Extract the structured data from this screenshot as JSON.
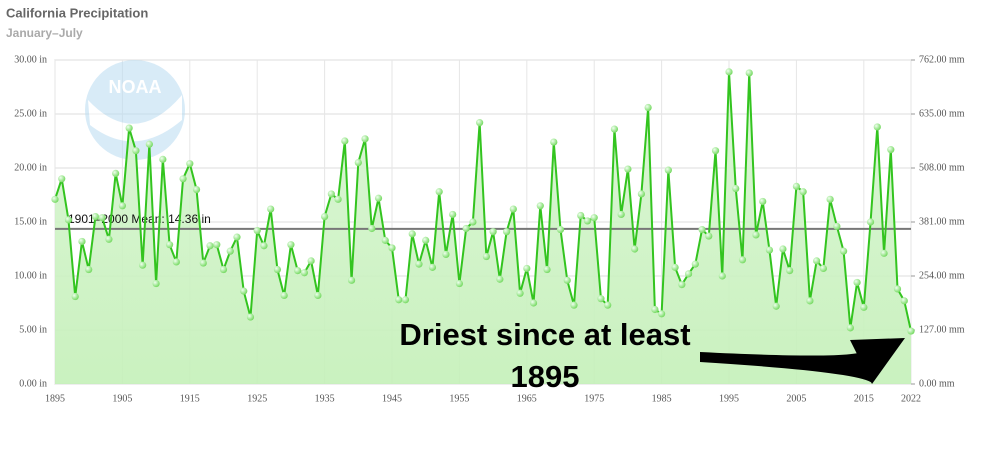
{
  "chart_data": {
    "type": "area-line",
    "title": "California Precipitation",
    "subtitle": "January–July",
    "logo_text": "NOAA",
    "color": "#33c41f",
    "grid": true,
    "x": [
      1895,
      1896,
      1897,
      1898,
      1899,
      1900,
      1901,
      1902,
      1903,
      1904,
      1905,
      1906,
      1907,
      1908,
      1909,
      1910,
      1911,
      1912,
      1913,
      1914,
      1915,
      1916,
      1917,
      1918,
      1919,
      1920,
      1921,
      1922,
      1923,
      1924,
      1925,
      1926,
      1927,
      1928,
      1929,
      1930,
      1931,
      1932,
      1933,
      1934,
      1935,
      1936,
      1937,
      1938,
      1939,
      1940,
      1941,
      1942,
      1943,
      1944,
      1945,
      1946,
      1947,
      1948,
      1949,
      1950,
      1951,
      1952,
      1953,
      1954,
      1955,
      1956,
      1957,
      1958,
      1959,
      1960,
      1961,
      1962,
      1963,
      1964,
      1965,
      1966,
      1967,
      1968,
      1969,
      1970,
      1971,
      1972,
      1973,
      1974,
      1975,
      1976,
      1977,
      1978,
      1979,
      1980,
      1981,
      1982,
      1983,
      1984,
      1985,
      1986,
      1987,
      1988,
      1989,
      1990,
      1991,
      1992,
      1993,
      1994,
      1995,
      1996,
      1997,
      1998,
      1999,
      2000,
      2001,
      2002,
      2003,
      2004,
      2005,
      2006,
      2007,
      2008,
      2009,
      2010,
      2011,
      2012,
      2013,
      2014,
      2015,
      2016,
      2017,
      2018,
      2019,
      2020,
      2021,
      2022
    ],
    "values": [
      17.1,
      19.0,
      15.2,
      8.1,
      13.2,
      10.6,
      15.5,
      15.4,
      13.4,
      19.5,
      16.5,
      23.7,
      21.6,
      11.0,
      22.2,
      9.3,
      20.8,
      12.9,
      11.3,
      19.0,
      20.4,
      18.0,
      11.2,
      12.8,
      12.9,
      10.6,
      12.3,
      13.6,
      8.6,
      6.2,
      14.2,
      12.8,
      16.2,
      10.6,
      8.2,
      12.9,
      10.5,
      10.3,
      11.4,
      8.2,
      15.5,
      17.6,
      17.1,
      22.5,
      9.6,
      20.5,
      22.7,
      14.4,
      17.2,
      13.3,
      12.6,
      7.8,
      7.8,
      13.9,
      11.1,
      13.3,
      10.8,
      17.8,
      12.0,
      15.7,
      9.3,
      14.4,
      15.0,
      24.2,
      11.8,
      14.1,
      9.7,
      14.1,
      16.2,
      8.4,
      10.7,
      7.5,
      16.5,
      10.6,
      22.4,
      14.3,
      9.6,
      7.3,
      15.6,
      15.1,
      15.4,
      7.9,
      7.3,
      23.6,
      15.7,
      19.9,
      12.5,
      17.6,
      25.6,
      6.9,
      6.5,
      19.8,
      10.8,
      9.2,
      10.2,
      11.1,
      14.3,
      13.7,
      21.6,
      10.0,
      28.9,
      18.1,
      11.5,
      28.8,
      13.8,
      16.9,
      12.4,
      7.2,
      12.5,
      10.5,
      18.3,
      17.8,
      7.7,
      11.4,
      10.7,
      17.1,
      14.6,
      12.3,
      5.2,
      9.4,
      7.1,
      15.0,
      23.8,
      12.1,
      21.7,
      8.8,
      7.7,
      4.9
    ],
    "xlim": [
      1895,
      2022
    ],
    "xticks": [
      1895,
      1905,
      1915,
      1925,
      1935,
      1945,
      1955,
      1965,
      1975,
      1985,
      1995,
      2005,
      2015,
      2022
    ],
    "ylim": [
      0,
      30
    ],
    "yticks": [
      {
        "value": 0,
        "label": "0.00 in"
      },
      {
        "value": 5,
        "label": "5.00 in"
      },
      {
        "value": 10,
        "label": "10.00 in"
      },
      {
        "value": 15,
        "label": "15.00 in"
      },
      {
        "value": 20,
        "label": "20.00 in"
      },
      {
        "value": 25,
        "label": "25.00 in"
      },
      {
        "value": 30,
        "label": "30.00 in"
      }
    ],
    "y2lim": [
      0,
      762
    ],
    "y2ticks": [
      {
        "value": 0,
        "label": "0.00 mm"
      },
      {
        "value": 127,
        "label": "127.00 mm"
      },
      {
        "value": 254,
        "label": "254.00 mm"
      },
      {
        "value": 381,
        "label": "381.00 mm"
      },
      {
        "value": 508,
        "label": "508.00 mm"
      },
      {
        "value": 635,
        "label": "635.00 mm"
      },
      {
        "value": 762,
        "label": "762.00 mm"
      }
    ],
    "mean_line": {
      "value": 14.36,
      "label": "1901–2000 Mean: 14.36 in"
    },
    "annotation": "Driest since at least 1895"
  }
}
